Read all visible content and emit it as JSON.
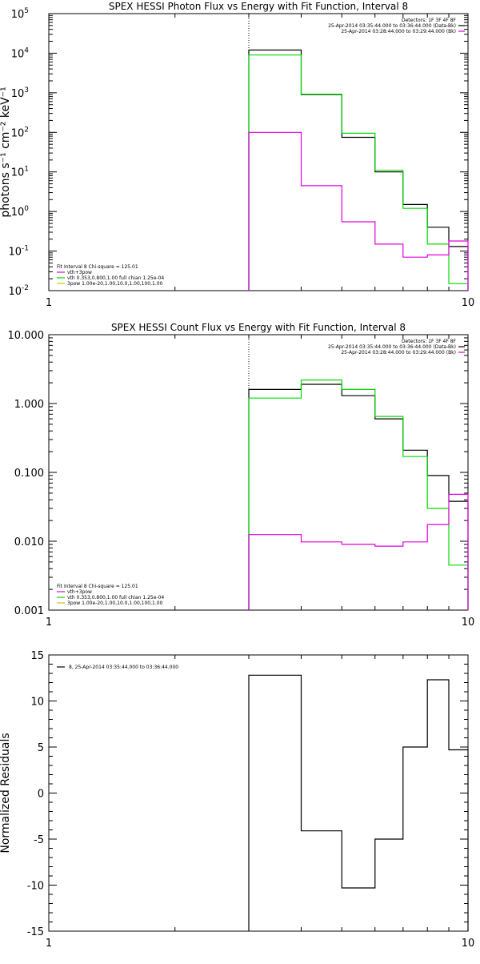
{
  "colors": {
    "black": "#000000",
    "green": "#00dd00",
    "magenta": "#e000e0",
    "dotted": "#000000"
  },
  "chart_data": [
    {
      "type": "line",
      "title": "SPEX HESSI Photon Flux vs Energy with Fit Function, Interval 8",
      "xlabel": "",
      "ylabel": "photons s⁻¹ cm⁻² keV⁻¹",
      "xscale": "log",
      "yscale": "log",
      "xlim": [
        1,
        10
      ],
      "ylim": [
        0.01,
        100000
      ],
      "x_ticks": [
        "1",
        "10"
      ],
      "y_ticks": [
        {
          "value": 0.01,
          "base": "10",
          "exp": "-2"
        },
        {
          "value": 0.1,
          "base": "10",
          "exp": "-1"
        },
        {
          "value": 1,
          "base": "10",
          "exp": "0"
        },
        {
          "value": 10,
          "base": "10",
          "exp": "1"
        },
        {
          "value": 100,
          "base": "10",
          "exp": "2"
        },
        {
          "value": 1000,
          "base": "10",
          "exp": "3"
        },
        {
          "value": 10000,
          "base": "10",
          "exp": "4"
        },
        {
          "value": 100000,
          "base": "10",
          "exp": "5"
        }
      ],
      "dotted_line_x": 3.0,
      "bin_edges": [
        3.0,
        4.0,
        5.0,
        6.0,
        7.0,
        8.0,
        9.0,
        10.0
      ],
      "series": [
        {
          "color": "black",
          "values": [
            12000,
            900,
            75,
            10,
            1.5,
            0.4,
            0.13
          ]
        },
        {
          "color": "green",
          "values": [
            9000,
            920,
            95,
            11,
            1.2,
            0.15,
            0.015
          ]
        },
        {
          "color": "magenta",
          "values": [
            100,
            4.5,
            0.55,
            0.15,
            0.07,
            0.08,
            0.18
          ]
        }
      ],
      "legend_top": {
        "lines": [
          {
            "text": "Detectors: 1F 3F 4F 8F",
            "color": ""
          },
          {
            "text": "25-Apr-2014 03:35:44.000 to 03:36:44.000 (Data-Bk)",
            "color": "black"
          },
          {
            "text": "25-Apr-2014 03:28:44.000 to 03:29:44.000 (Bk)",
            "color": "magenta"
          }
        ]
      },
      "legend_bottom": {
        "lines": [
          {
            "text": "Fit Interval 8   Chi-square = 125.01",
            "color": ""
          },
          {
            "text": "vth+3pow",
            "color": "magenta"
          },
          {
            "text": "vth 0.353,0.800,1.00  full chian 1.25e-04",
            "color": "green"
          },
          {
            "text": "3pow 1.00e-20,1.00,10.0,1.00,100,1.00",
            "color": "#c8c800"
          }
        ]
      }
    },
    {
      "type": "line",
      "title": "SPEX HESSI Count Flux vs Energy with Fit Function, Interval 8",
      "xlabel": "",
      "ylabel": "",
      "xscale": "log",
      "yscale": "log",
      "xlim": [
        1,
        10
      ],
      "ylim": [
        0.001,
        10
      ],
      "x_ticks": [
        "1",
        "10"
      ],
      "y_ticks": [
        {
          "value": 0.001,
          "label": "0.001"
        },
        {
          "value": 0.01,
          "label": "0.010"
        },
        {
          "value": 0.1,
          "label": "0.100"
        },
        {
          "value": 1,
          "label": "1.000"
        },
        {
          "value": 10,
          "label": "10.000"
        }
      ],
      "dotted_line_x": 3.0,
      "bin_edges": [
        3.0,
        4.0,
        5.0,
        6.0,
        7.0,
        8.0,
        9.0,
        10.0
      ],
      "series": [
        {
          "color": "black",
          "values": [
            1.6,
            1.9,
            1.3,
            0.6,
            0.21,
            0.09,
            0.038
          ]
        },
        {
          "color": "green",
          "values": [
            1.2,
            2.2,
            1.6,
            0.65,
            0.17,
            0.03,
            0.0045
          ]
        },
        {
          "color": "magenta",
          "values": [
            0.0125,
            0.0098,
            0.009,
            0.0085,
            0.0098,
            0.0175,
            0.048
          ]
        }
      ],
      "legend_top": {
        "lines": [
          {
            "text": "Detectors: 1F 3F 4F 8F",
            "color": ""
          },
          {
            "text": "25-Apr-2014 03:35:44.000 to 03:36:44.000 (Data-Bk)",
            "color": "black"
          },
          {
            "text": "25-Apr-2014 03:28:44.000 to 03:29:44.000 (Bk)",
            "color": "magenta"
          }
        ]
      },
      "legend_bottom": {
        "lines": [
          {
            "text": "Fit Interval 8   Chi-square = 125.01",
            "color": ""
          },
          {
            "text": "vth+3pow",
            "color": "magenta"
          },
          {
            "text": "vth 0.353,0.800,1.00  full chian 1.25e-04",
            "color": "green"
          },
          {
            "text": "3pow 1.00e-20,1.00,10.0,1.00,100,1.00",
            "color": "#c8c800"
          }
        ]
      }
    },
    {
      "type": "line",
      "title": "",
      "xlabel": "",
      "ylabel": "Normalized Residuals",
      "xscale": "log",
      "yscale": "linear",
      "xlim": [
        1,
        10
      ],
      "ylim": [
        -15,
        15
      ],
      "x_ticks": [
        "1",
        "10"
      ],
      "y_ticks": [
        {
          "value": -15,
          "label": "-15"
        },
        {
          "value": -10,
          "label": "-10"
        },
        {
          "value": -5,
          "label": "-5"
        },
        {
          "value": 0,
          "label": "0"
        },
        {
          "value": 5,
          "label": "5"
        },
        {
          "value": 10,
          "label": "10"
        },
        {
          "value": 15,
          "label": "15"
        }
      ],
      "bin_edges": [
        3.0,
        4.0,
        5.0,
        6.0,
        7.0,
        8.0,
        9.0,
        10.0
      ],
      "series": [
        {
          "color": "black",
          "values": [
            12.8,
            -4.1,
            -10.3,
            -5.0,
            5.0,
            12.3,
            4.7
          ]
        }
      ],
      "legend_top": {
        "lines": [
          {
            "text": "8, 25-Apr-2014 03:35:44.000 to 03:36:44.000",
            "color": "black"
          }
        ]
      }
    }
  ]
}
